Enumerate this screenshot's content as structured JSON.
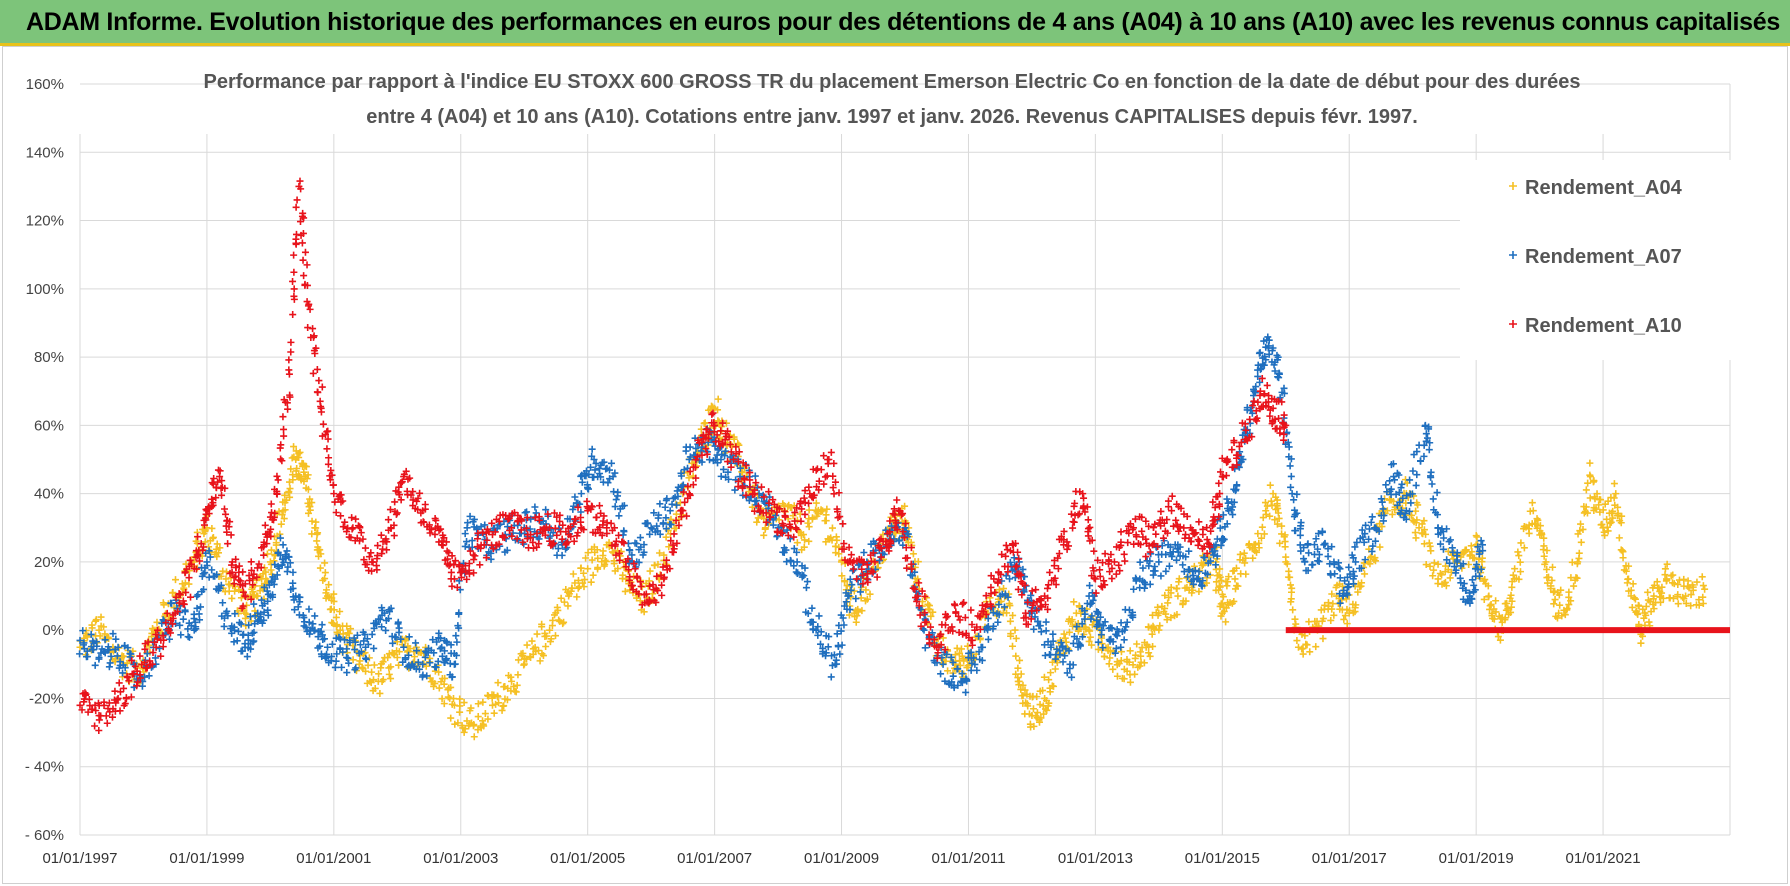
{
  "banner": {
    "text": "ADAM Informe. Evolution historique des performances en euros pour des détentions de 4 ans (A04) à 10 ans (A10) avec les revenus connus capitalisés"
  },
  "chart_data": {
    "type": "scatter",
    "title_line1": "Performance par rapport à l'indice EU STOXX 600 GROSS TR  du placement Emerson Electric Co en fonction de la date de début pour des durées",
    "title_line2": "entre 4 (A04) et 10 ans (A10).  Cotations entre janv. 1997 et janv. 2026. Revenus CAPITALISES depuis févr. 1997.",
    "ylim": [
      -60,
      160
    ],
    "yticks": [
      {
        "value": 160,
        "label": "160%"
      },
      {
        "value": 140,
        "label": "140%"
      },
      {
        "value": 120,
        "label": "120%"
      },
      {
        "value": 100,
        "label": "100%"
      },
      {
        "value": 80,
        "label": "80%"
      },
      {
        "value": 60,
        "label": "60%"
      },
      {
        "value": 40,
        "label": "40%"
      },
      {
        "value": 20,
        "label": "20%"
      },
      {
        "value": 0,
        "label": "0%"
      },
      {
        "value": -20,
        "label": "-20%"
      },
      {
        "value": -40,
        "label": "- 40%"
      },
      {
        "value": -60,
        "label": "- 60%"
      }
    ],
    "xlim": [
      1997.0,
      2023.0
    ],
    "xticks": [
      {
        "value": 1997,
        "label": "01/01/1997"
      },
      {
        "value": 1999,
        "label": "01/01/1999"
      },
      {
        "value": 2001,
        "label": "01/01/2001"
      },
      {
        "value": 2003,
        "label": "01/01/2003"
      },
      {
        "value": 2005,
        "label": "01/01/2005"
      },
      {
        "value": 2007,
        "label": "01/01/2007"
      },
      {
        "value": 2009,
        "label": "01/01/2009"
      },
      {
        "value": 2011,
        "label": "01/01/2011"
      },
      {
        "value": 2013,
        "label": "01/01/2013"
      },
      {
        "value": 2015,
        "label": "01/01/2015"
      },
      {
        "value": 2017,
        "label": "01/01/2017"
      },
      {
        "value": 2019,
        "label": "01/01/2019"
      },
      {
        "value": 2021,
        "label": "01/01/2021"
      }
    ],
    "legend": [
      "Rendement_A04",
      "Rendement_A07",
      "Rendement_A10"
    ],
    "legend_position": "top-right",
    "series": [
      {
        "name": "Rendement_A04",
        "color": "#f5c024",
        "points": [
          [
            1997.0,
            -5
          ],
          [
            1997.3,
            0
          ],
          [
            1997.6,
            -8
          ],
          [
            1997.9,
            -12
          ],
          [
            1998.2,
            0
          ],
          [
            1998.5,
            10
          ],
          [
            1998.8,
            20
          ],
          [
            1999.0,
            30
          ],
          [
            1999.3,
            15
          ],
          [
            1999.6,
            5
          ],
          [
            1999.8,
            10
          ],
          [
            2000.0,
            20
          ],
          [
            2000.2,
            35
          ],
          [
            2000.4,
            50
          ],
          [
            2000.55,
            45
          ],
          [
            2000.7,
            30
          ],
          [
            2000.9,
            10
          ],
          [
            2001.1,
            0
          ],
          [
            2001.4,
            -10
          ],
          [
            2001.7,
            -15
          ],
          [
            2002.0,
            -8
          ],
          [
            2002.3,
            -5
          ],
          [
            2002.6,
            -12
          ],
          [
            2002.9,
            -22
          ],
          [
            2003.2,
            -28
          ],
          [
            2003.5,
            -22
          ],
          [
            2003.8,
            -15
          ],
          [
            2004.1,
            -8
          ],
          [
            2004.4,
            0
          ],
          [
            2004.7,
            10
          ],
          [
            2005.0,
            18
          ],
          [
            2005.3,
            25
          ],
          [
            2005.6,
            15
          ],
          [
            2005.9,
            8
          ],
          [
            2006.2,
            22
          ],
          [
            2006.5,
            40
          ],
          [
            2006.8,
            55
          ],
          [
            2007.0,
            65
          ],
          [
            2007.2,
            55
          ],
          [
            2007.5,
            45
          ],
          [
            2007.8,
            30
          ],
          [
            2008.1,
            35
          ],
          [
            2008.4,
            28
          ],
          [
            2008.7,
            35
          ],
          [
            2009.0,
            20
          ],
          [
            2009.2,
            5
          ],
          [
            2009.5,
            18
          ],
          [
            2009.8,
            30
          ],
          [
            2010.0,
            32
          ],
          [
            2010.2,
            15
          ],
          [
            2010.5,
            -5
          ],
          [
            2010.8,
            -10
          ],
          [
            2011.0,
            -8
          ],
          [
            2011.3,
            5
          ],
          [
            2011.6,
            10
          ],
          [
            2011.8,
            -15
          ],
          [
            2012.0,
            -25
          ],
          [
            2012.2,
            -20
          ],
          [
            2012.4,
            -8
          ],
          [
            2012.7,
            5
          ],
          [
            2012.9,
            0
          ],
          [
            2013.2,
            -5
          ],
          [
            2013.5,
            -12
          ],
          [
            2013.8,
            -5
          ],
          [
            2014.0,
            5
          ],
          [
            2014.3,
            10
          ],
          [
            2014.6,
            15
          ],
          [
            2014.9,
            20
          ],
          [
            2015.0,
            5
          ],
          [
            2015.2,
            15
          ],
          [
            2015.5,
            25
          ],
          [
            2015.8,
            40
          ],
          [
            2016.0,
            20
          ],
          [
            2016.2,
            -5
          ],
          [
            2016.5,
            0
          ],
          [
            2016.8,
            10
          ],
          [
            2017.0,
            5
          ],
          [
            2017.3,
            20
          ],
          [
            2017.6,
            35
          ],
          [
            2017.9,
            40
          ],
          [
            2018.1,
            30
          ],
          [
            2018.4,
            15
          ],
          [
            2018.7,
            20
          ],
          [
            2019.0,
            25
          ],
          [
            2019.2,
            10
          ],
          [
            2019.4,
            0
          ],
          [
            2019.6,
            15
          ],
          [
            2019.9,
            35
          ],
          [
            2020.1,
            20
          ],
          [
            2020.3,
            5
          ],
          [
            2020.6,
            20
          ],
          [
            2020.8,
            45
          ],
          [
            2021.0,
            30
          ],
          [
            2021.2,
            40
          ],
          [
            2021.4,
            15
          ],
          [
            2021.6,
            0
          ],
          [
            2021.8,
            10
          ],
          [
            2022.0,
            15
          ],
          [
            2022.3,
            10
          ],
          [
            2022.6,
            12
          ]
        ]
      },
      {
        "name": "Rendement_A07",
        "color": "#1f6fbf",
        "points": [
          [
            1997.0,
            -3
          ],
          [
            1997.3,
            -8
          ],
          [
            1997.6,
            -5
          ],
          [
            1997.9,
            -15
          ],
          [
            1998.2,
            -5
          ],
          [
            1998.5,
            5
          ],
          [
            1998.8,
            0
          ],
          [
            1999.0,
            20
          ],
          [
            1999.3,
            5
          ],
          [
            1999.6,
            -5
          ],
          [
            1999.8,
            5
          ],
          [
            2000.0,
            10
          ],
          [
            2000.2,
            25
          ],
          [
            2000.4,
            10
          ],
          [
            2000.7,
            0
          ],
          [
            2000.9,
            -5
          ],
          [
            2001.2,
            -8
          ],
          [
            2001.5,
            -5
          ],
          [
            2001.8,
            5
          ],
          [
            2002.1,
            -5
          ],
          [
            2002.4,
            -10
          ],
          [
            2002.7,
            -5
          ],
          [
            2002.9,
            -10
          ],
          [
            2003.1,
            30
          ],
          [
            2003.4,
            25
          ],
          [
            2003.7,
            28
          ],
          [
            2004.0,
            30
          ],
          [
            2004.3,
            32
          ],
          [
            2004.6,
            25
          ],
          [
            2004.9,
            40
          ],
          [
            2005.1,
            50
          ],
          [
            2005.4,
            45
          ],
          [
            2005.7,
            20
          ],
          [
            2006.0,
            30
          ],
          [
            2006.3,
            35
          ],
          [
            2006.6,
            50
          ],
          [
            2006.9,
            55
          ],
          [
            2007.1,
            50
          ],
          [
            2007.4,
            45
          ],
          [
            2007.7,
            40
          ],
          [
            2008.0,
            30
          ],
          [
            2008.3,
            20
          ],
          [
            2008.6,
            0
          ],
          [
            2008.9,
            -10
          ],
          [
            2009.1,
            10
          ],
          [
            2009.4,
            20
          ],
          [
            2009.7,
            25
          ],
          [
            2010.0,
            30
          ],
          [
            2010.3,
            0
          ],
          [
            2010.6,
            -10
          ],
          [
            2010.9,
            -15
          ],
          [
            2011.2,
            -5
          ],
          [
            2011.5,
            10
          ],
          [
            2011.8,
            20
          ],
          [
            2012.0,
            5
          ],
          [
            2012.3,
            -5
          ],
          [
            2012.6,
            -10
          ],
          [
            2012.9,
            10
          ],
          [
            2013.1,
            0
          ],
          [
            2013.4,
            -5
          ],
          [
            2013.7,
            15
          ],
          [
            2014.0,
            20
          ],
          [
            2014.3,
            25
          ],
          [
            2014.6,
            15
          ],
          [
            2014.9,
            25
          ],
          [
            2015.1,
            35
          ],
          [
            2015.3,
            50
          ],
          [
            2015.5,
            70
          ],
          [
            2015.7,
            85
          ],
          [
            2015.9,
            75
          ],
          [
            2016.1,
            40
          ],
          [
            2016.3,
            20
          ],
          [
            2016.6,
            25
          ],
          [
            2016.9,
            10
          ],
          [
            2017.1,
            20
          ],
          [
            2017.4,
            30
          ],
          [
            2017.7,
            45
          ],
          [
            2017.9,
            35
          ],
          [
            2018.2,
            60
          ],
          [
            2018.4,
            30
          ],
          [
            2018.7,
            20
          ],
          [
            2018.9,
            10
          ],
          [
            2019.1,
            25
          ]
        ]
      },
      {
        "name": "Rendement_A10",
        "color": "#e8131b",
        "points": [
          [
            1997.0,
            -22
          ],
          [
            1997.3,
            -25
          ],
          [
            1997.6,
            -20
          ],
          [
            1997.9,
            -12
          ],
          [
            1998.2,
            -5
          ],
          [
            1998.5,
            5
          ],
          [
            1998.8,
            18
          ],
          [
            1999.0,
            35
          ],
          [
            1999.2,
            45
          ],
          [
            1999.4,
            20
          ],
          [
            1999.6,
            10
          ],
          [
            1999.9,
            25
          ],
          [
            2000.1,
            40
          ],
          [
            2000.3,
            75
          ],
          [
            2000.45,
            130
          ],
          [
            2000.6,
            95
          ],
          [
            2000.8,
            65
          ],
          [
            2001.0,
            40
          ],
          [
            2001.3,
            30
          ],
          [
            2001.6,
            20
          ],
          [
            2001.9,
            30
          ],
          [
            2002.1,
            45
          ],
          [
            2002.4,
            35
          ],
          [
            2002.7,
            25
          ],
          [
            2002.9,
            15
          ],
          [
            2003.2,
            22
          ],
          [
            2003.5,
            28
          ],
          [
            2003.8,
            30
          ],
          [
            2004.1,
            28
          ],
          [
            2004.4,
            30
          ],
          [
            2004.7,
            28
          ],
          [
            2005.0,
            35
          ],
          [
            2005.3,
            30
          ],
          [
            2005.6,
            20
          ],
          [
            2005.9,
            8
          ],
          [
            2006.2,
            15
          ],
          [
            2006.5,
            35
          ],
          [
            2006.8,
            55
          ],
          [
            2007.0,
            60
          ],
          [
            2007.3,
            50
          ],
          [
            2007.6,
            40
          ],
          [
            2007.9,
            35
          ],
          [
            2008.2,
            30
          ],
          [
            2008.5,
            40
          ],
          [
            2008.8,
            50
          ],
          [
            2009.1,
            20
          ],
          [
            2009.4,
            15
          ],
          [
            2009.7,
            25
          ],
          [
            2009.9,
            35
          ],
          [
            2010.2,
            10
          ],
          [
            2010.5,
            -5
          ],
          [
            2010.8,
            5
          ],
          [
            2011.1,
            0
          ],
          [
            2011.4,
            15
          ],
          [
            2011.7,
            25
          ],
          [
            2011.9,
            5
          ],
          [
            2012.2,
            10
          ],
          [
            2012.5,
            25
          ],
          [
            2012.8,
            40
          ],
          [
            2013.0,
            15
          ],
          [
            2013.3,
            20
          ],
          [
            2013.6,
            30
          ],
          [
            2013.9,
            25
          ],
          [
            2014.2,
            35
          ],
          [
            2014.5,
            30
          ],
          [
            2014.8,
            25
          ],
          [
            2015.0,
            45
          ],
          [
            2015.3,
            55
          ],
          [
            2015.6,
            70
          ],
          [
            2015.8,
            65
          ],
          [
            2016.0,
            60
          ]
        ],
        "zero_line_from": 2016.0,
        "zero_line_to": 2023.0,
        "zero_line_value": 0
      }
    ]
  }
}
